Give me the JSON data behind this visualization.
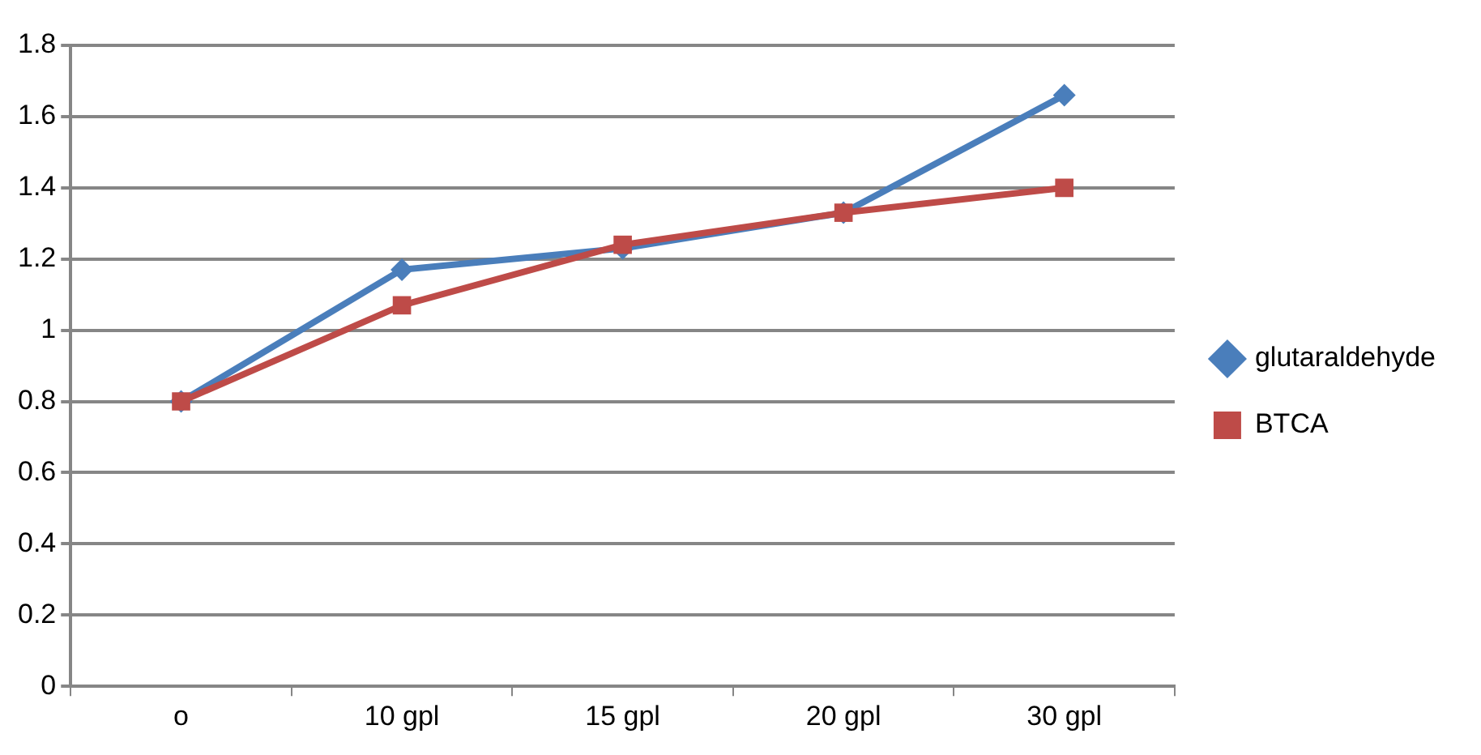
{
  "chart_data": {
    "type": "line",
    "categories": [
      "o",
      "10 gpl",
      "15 gpl",
      "20 gpl",
      "30 gpl"
    ],
    "series": [
      {
        "name": "glutaraldehyde",
        "color": "#4a7ebb",
        "values": [
          0.8,
          1.17,
          1.23,
          1.33,
          1.66
        ],
        "marker": "diamond"
      },
      {
        "name": "BTCA",
        "color": "#be4b48",
        "values": [
          0.8,
          1.07,
          1.24,
          1.33,
          1.4
        ],
        "marker": "square"
      }
    ],
    "ylim": [
      0,
      1.8
    ],
    "yticks": [
      0,
      0.2,
      0.4,
      0.6,
      0.8,
      1,
      1.2,
      1.4,
      1.6,
      1.8
    ],
    "grid": "y",
    "legend": "right",
    "line_style": "solid"
  }
}
